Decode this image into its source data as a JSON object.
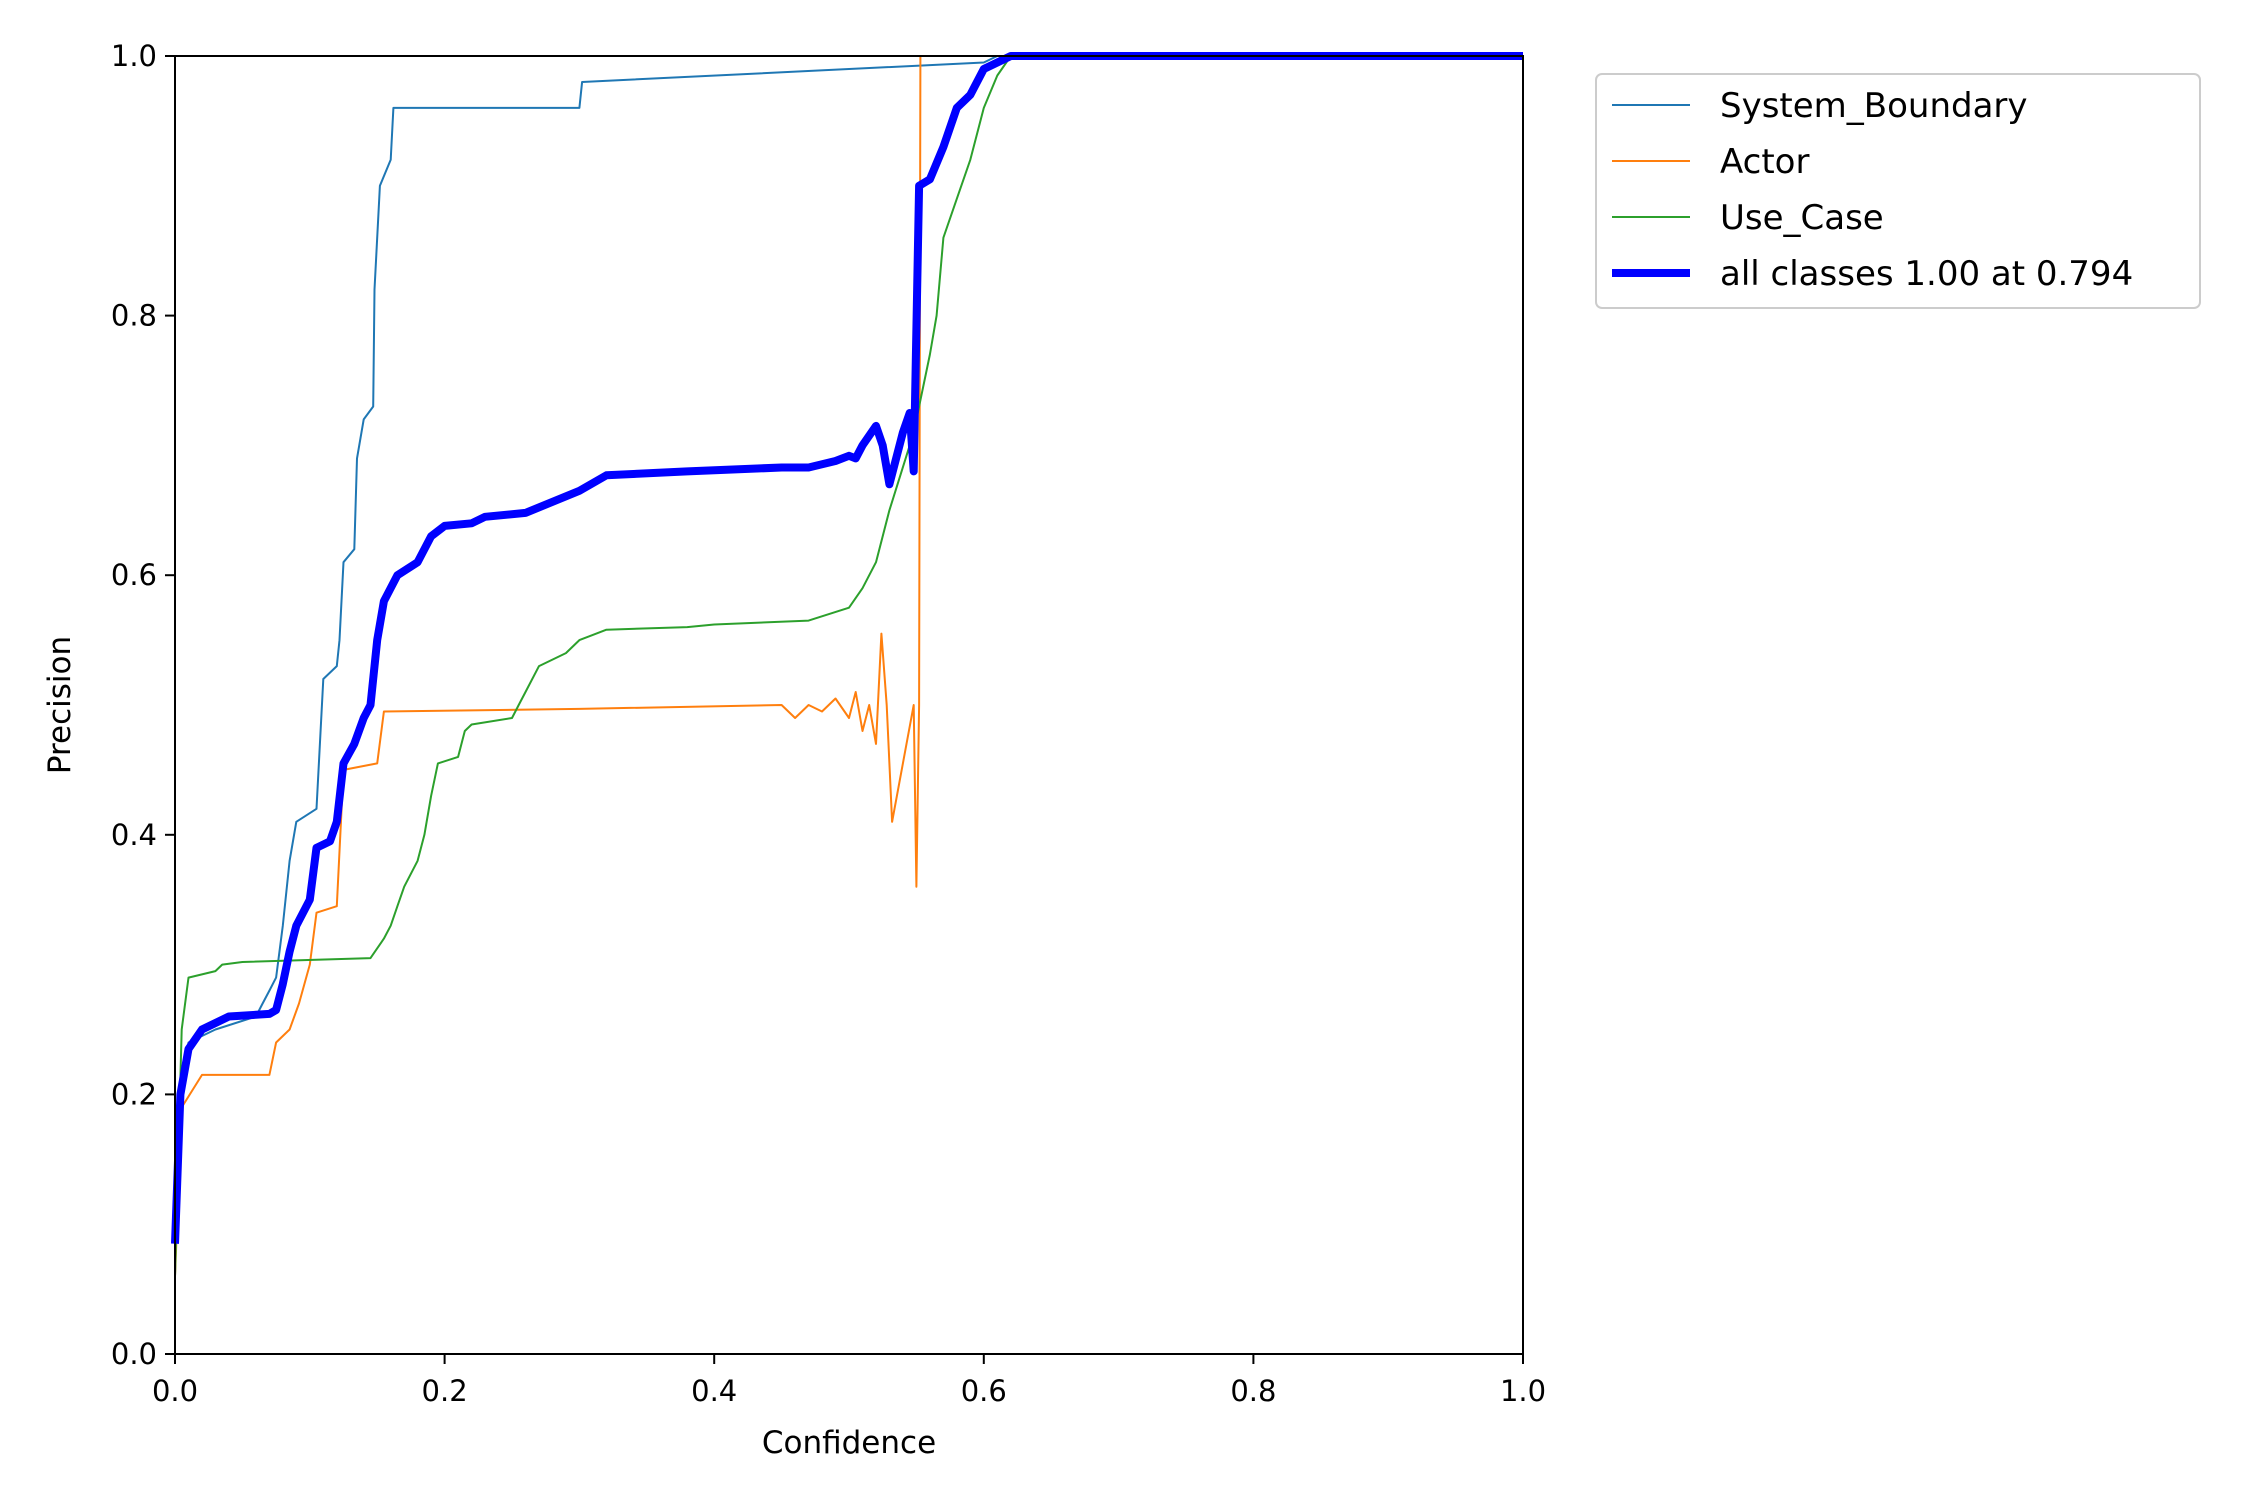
{
  "chart_data": {
    "type": "line",
    "xlabel": "Confidence",
    "ylabel": "Precision",
    "xlim": [
      0,
      1
    ],
    "ylim": [
      0,
      1
    ],
    "xticks": [
      "0.0",
      "0.2",
      "0.4",
      "0.6",
      "0.8",
      "1.0"
    ],
    "yticks": [
      "0.0",
      "0.2",
      "0.4",
      "0.6",
      "0.8",
      "1.0"
    ],
    "grid": false,
    "legend_position": "outside-top-right",
    "series": [
      {
        "name": "System_Boundary",
        "color": "#1f77b4",
        "width": "thin",
        "points": [
          [
            0.0,
            0.06
          ],
          [
            0.003,
            0.2
          ],
          [
            0.01,
            0.24
          ],
          [
            0.03,
            0.25
          ],
          [
            0.06,
            0.26
          ],
          [
            0.065,
            0.27
          ],
          [
            0.07,
            0.28
          ],
          [
            0.075,
            0.29
          ],
          [
            0.08,
            0.33
          ],
          [
            0.085,
            0.38
          ],
          [
            0.09,
            0.41
          ],
          [
            0.105,
            0.42
          ],
          [
            0.11,
            0.52
          ],
          [
            0.12,
            0.53
          ],
          [
            0.122,
            0.55
          ],
          [
            0.125,
            0.61
          ],
          [
            0.133,
            0.62
          ],
          [
            0.135,
            0.69
          ],
          [
            0.14,
            0.72
          ],
          [
            0.147,
            0.73
          ],
          [
            0.148,
            0.82
          ],
          [
            0.152,
            0.9
          ],
          [
            0.16,
            0.92
          ],
          [
            0.162,
            0.96
          ],
          [
            0.3,
            0.96
          ],
          [
            0.302,
            0.98
          ],
          [
            0.6,
            0.995
          ],
          [
            0.61,
            1.0
          ],
          [
            1.0,
            1.0
          ]
        ]
      },
      {
        "name": "Actor",
        "color": "#ff7f0e",
        "width": "thin",
        "points": [
          [
            0.0,
            0.06
          ],
          [
            0.005,
            0.19
          ],
          [
            0.02,
            0.215
          ],
          [
            0.07,
            0.215
          ],
          [
            0.075,
            0.24
          ],
          [
            0.085,
            0.25
          ],
          [
            0.092,
            0.27
          ],
          [
            0.1,
            0.3
          ],
          [
            0.105,
            0.34
          ],
          [
            0.12,
            0.345
          ],
          [
            0.125,
            0.45
          ],
          [
            0.15,
            0.455
          ],
          [
            0.155,
            0.495
          ],
          [
            0.3,
            0.497
          ],
          [
            0.45,
            0.5
          ],
          [
            0.46,
            0.49
          ],
          [
            0.47,
            0.5
          ],
          [
            0.48,
            0.495
          ],
          [
            0.49,
            0.505
          ],
          [
            0.5,
            0.49
          ],
          [
            0.505,
            0.51
          ],
          [
            0.51,
            0.48
          ],
          [
            0.515,
            0.5
          ],
          [
            0.52,
            0.47
          ],
          [
            0.524,
            0.555
          ],
          [
            0.528,
            0.5
          ],
          [
            0.532,
            0.41
          ],
          [
            0.548,
            0.5
          ],
          [
            0.55,
            0.36
          ],
          [
            0.552,
            0.5
          ],
          [
            0.553,
            1.0
          ],
          [
            1.0,
            1.0
          ]
        ]
      },
      {
        "name": "Use_Case",
        "color": "#2ca02c",
        "width": "thin",
        "points": [
          [
            0.0,
            0.06
          ],
          [
            0.005,
            0.25
          ],
          [
            0.01,
            0.29
          ],
          [
            0.03,
            0.295
          ],
          [
            0.035,
            0.3
          ],
          [
            0.05,
            0.302
          ],
          [
            0.145,
            0.305
          ],
          [
            0.155,
            0.32
          ],
          [
            0.16,
            0.33
          ],
          [
            0.165,
            0.345
          ],
          [
            0.17,
            0.36
          ],
          [
            0.18,
            0.38
          ],
          [
            0.185,
            0.4
          ],
          [
            0.19,
            0.43
          ],
          [
            0.195,
            0.455
          ],
          [
            0.21,
            0.46
          ],
          [
            0.215,
            0.48
          ],
          [
            0.22,
            0.485
          ],
          [
            0.25,
            0.49
          ],
          [
            0.255,
            0.5
          ],
          [
            0.26,
            0.51
          ],
          [
            0.27,
            0.53
          ],
          [
            0.29,
            0.54
          ],
          [
            0.3,
            0.55
          ],
          [
            0.32,
            0.558
          ],
          [
            0.38,
            0.56
          ],
          [
            0.4,
            0.562
          ],
          [
            0.47,
            0.565
          ],
          [
            0.5,
            0.575
          ],
          [
            0.51,
            0.59
          ],
          [
            0.52,
            0.61
          ],
          [
            0.53,
            0.65
          ],
          [
            0.545,
            0.7
          ],
          [
            0.55,
            0.72
          ],
          [
            0.56,
            0.77
          ],
          [
            0.565,
            0.8
          ],
          [
            0.57,
            0.86
          ],
          [
            0.58,
            0.89
          ],
          [
            0.59,
            0.92
          ],
          [
            0.6,
            0.96
          ],
          [
            0.61,
            0.985
          ],
          [
            0.62,
            1.0
          ],
          [
            1.0,
            1.0
          ]
        ]
      },
      {
        "name": "all classes 1.00 at 0.794",
        "color": "#0000ff",
        "width": "thick",
        "points": [
          [
            0.0,
            0.085
          ],
          [
            0.004,
            0.2
          ],
          [
            0.01,
            0.235
          ],
          [
            0.02,
            0.25
          ],
          [
            0.04,
            0.26
          ],
          [
            0.07,
            0.262
          ],
          [
            0.075,
            0.265
          ],
          [
            0.08,
            0.285
          ],
          [
            0.085,
            0.31
          ],
          [
            0.09,
            0.33
          ],
          [
            0.1,
            0.35
          ],
          [
            0.105,
            0.39
          ],
          [
            0.115,
            0.395
          ],
          [
            0.12,
            0.41
          ],
          [
            0.125,
            0.455
          ],
          [
            0.133,
            0.47
          ],
          [
            0.14,
            0.49
          ],
          [
            0.145,
            0.5
          ],
          [
            0.15,
            0.55
          ],
          [
            0.155,
            0.58
          ],
          [
            0.165,
            0.6
          ],
          [
            0.18,
            0.61
          ],
          [
            0.19,
            0.63
          ],
          [
            0.2,
            0.638
          ],
          [
            0.22,
            0.64
          ],
          [
            0.23,
            0.645
          ],
          [
            0.26,
            0.648
          ],
          [
            0.3,
            0.665
          ],
          [
            0.32,
            0.677
          ],
          [
            0.38,
            0.68
          ],
          [
            0.45,
            0.683
          ],
          [
            0.47,
            0.683
          ],
          [
            0.49,
            0.688
          ],
          [
            0.5,
            0.692
          ],
          [
            0.505,
            0.69
          ],
          [
            0.51,
            0.7
          ],
          [
            0.52,
            0.715
          ],
          [
            0.525,
            0.7
          ],
          [
            0.53,
            0.67
          ],
          [
            0.54,
            0.71
          ],
          [
            0.545,
            0.725
          ],
          [
            0.548,
            0.68
          ],
          [
            0.552,
            0.9
          ],
          [
            0.56,
            0.905
          ],
          [
            0.57,
            0.93
          ],
          [
            0.58,
            0.96
          ],
          [
            0.59,
            0.97
          ],
          [
            0.6,
            0.99
          ],
          [
            0.61,
            0.995
          ],
          [
            0.62,
            1.0
          ],
          [
            1.0,
            1.0
          ]
        ]
      }
    ]
  }
}
